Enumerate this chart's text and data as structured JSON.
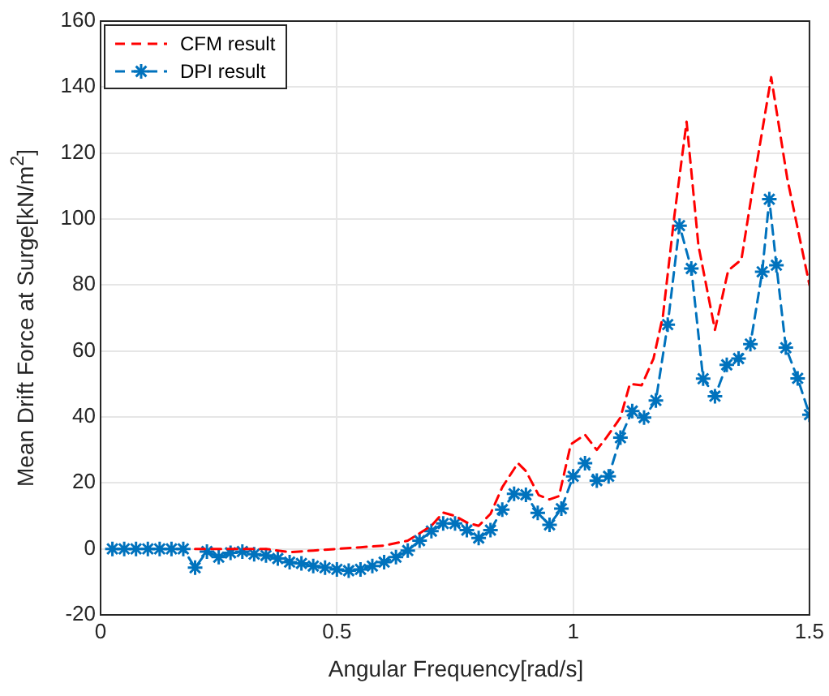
{
  "chart_data": {
    "type": "line",
    "xlabel": "Angular Frequency[rad/s]",
    "ylabel": "Mean Drift Force at Surge[kN/m$^{2}$]",
    "xlim": [
      0,
      1.5
    ],
    "ylim": [
      -20,
      160
    ],
    "xticks": [
      0,
      0.5,
      1,
      1.5
    ],
    "yticks": [
      -20,
      0,
      20,
      40,
      60,
      80,
      100,
      120,
      140,
      160
    ],
    "grid": true,
    "legend": "top left",
    "series": [
      {
        "name": "CFM result",
        "color": "#ff0000",
        "marker": "none",
        "line_style": "dashed",
        "x": [
          0.2,
          0.25,
          0.3,
          0.35,
          0.4,
          0.45,
          0.5,
          0.55,
          0.6,
          0.65,
          0.7,
          0.725,
          0.75,
          0.775,
          0.8,
          0.825,
          0.85,
          0.883,
          0.9,
          0.927,
          0.95,
          0.97,
          0.995,
          1.025,
          1.05,
          1.07,
          1.1,
          1.12,
          1.145,
          1.17,
          1.19,
          1.214,
          1.24,
          1.265,
          1.3,
          1.328,
          1.356,
          1.385,
          1.419,
          1.453,
          1.5
        ],
        "values": [
          0,
          0,
          0,
          0,
          -1,
          -0.5,
          0,
          0.5,
          1,
          2.5,
          7,
          11,
          10,
          8,
          7,
          10.6,
          18.7,
          26,
          23.6,
          16.3,
          15,
          16,
          31.7,
          34.6,
          30,
          33.7,
          39.8,
          50,
          49.6,
          57.7,
          70.7,
          100.8,
          129.5,
          92,
          66.4,
          84.4,
          87.7,
          113.9,
          143,
          112.3,
          80
        ]
      },
      {
        "name": "DPI result",
        "color": "#0072bd",
        "marker": "cross",
        "line_style": "dashed",
        "x": [
          0.025,
          0.05,
          0.075,
          0.1,
          0.125,
          0.15,
          0.175,
          0.2,
          0.225,
          0.25,
          0.275,
          0.3,
          0.325,
          0.35,
          0.375,
          0.4,
          0.425,
          0.45,
          0.475,
          0.5,
          0.525,
          0.55,
          0.575,
          0.6,
          0.625,
          0.65,
          0.675,
          0.7,
          0.725,
          0.75,
          0.775,
          0.8,
          0.825,
          0.85,
          0.875,
          0.9,
          0.925,
          0.95,
          0.975,
          1,
          1.025,
          1.05,
          1.075,
          1.1,
          1.125,
          1.15,
          1.175,
          1.2,
          1.225,
          1.25,
          1.275,
          1.3,
          1.325,
          1.35,
          1.375,
          1.4,
          1.415,
          1.43,
          1.45,
          1.475,
          1.5
        ],
        "values": [
          0,
          0,
          0,
          0,
          0,
          0,
          0,
          -5.7,
          -0.8,
          -2.5,
          -1.2,
          -0.8,
          -1.6,
          -2,
          -2.9,
          -4,
          -4.4,
          -5.2,
          -5.7,
          -6.2,
          -6.6,
          -6.2,
          -5.2,
          -4,
          -2.5,
          -0.5,
          2.5,
          5.4,
          7.7,
          7.7,
          5.7,
          3.3,
          5.7,
          11.9,
          16.7,
          16.4,
          10.9,
          7.3,
          12.2,
          22,
          26,
          20.7,
          22,
          33.7,
          41.8,
          39.8,
          45,
          68,
          98,
          85,
          51.6,
          46.3,
          55.8,
          57.7,
          62.1,
          84,
          106,
          86,
          61,
          51.7,
          40.7
        ]
      }
    ]
  }
}
